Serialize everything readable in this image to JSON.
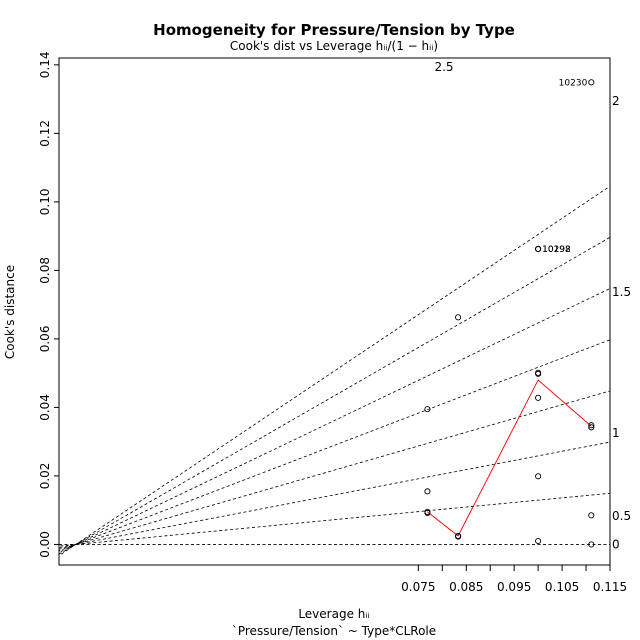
{
  "chart_data": {
    "type": "scatter",
    "title": "Homogeneity for Pressure/Tension by Type",
    "subtitle": "Cook's dist vs Leverage  hᵢᵢ/(1 − hᵢᵢ)",
    "xlabel": "Leverage  hᵢᵢ",
    "xlabel_sub": "`Pressure/Tension` ~ Type*CLRole",
    "ylabel": "Cook's distance",
    "xlim": [
      0.0,
      0.115
    ],
    "ylim": [
      -0.006,
      0.142
    ],
    "x_ticks": [
      0.075,
      0.08,
      0.085,
      0.09,
      0.095,
      0.1,
      0.105,
      0.11,
      0.115
    ],
    "x_tick_labels": [
      "0.075",
      "",
      "0.085",
      "",
      "0.095",
      "",
      "0.105",
      "",
      "0.115"
    ],
    "y_ticks": [
      0.0,
      0.02,
      0.04,
      0.06,
      0.08,
      0.1,
      0.12,
      0.14
    ],
    "y_tick_labels": [
      "0.00",
      "0.02",
      "0.04",
      "0.06",
      "0.08",
      "0.10",
      "0.12",
      "0.14"
    ],
    "grid": false,
    "points": [
      {
        "x": 0.0769,
        "y": 0.0395,
        "label": ""
      },
      {
        "x": 0.0769,
        "y": 0.0155,
        "label": ""
      },
      {
        "x": 0.0769,
        "y": 0.0095,
        "label": ""
      },
      {
        "x": 0.0769,
        "y": 0.0092,
        "label": ""
      },
      {
        "x": 0.0833,
        "y": 0.0663,
        "label": ""
      },
      {
        "x": 0.0833,
        "y": 0.0025,
        "label": ""
      },
      {
        "x": 0.0833,
        "y": 0.0023,
        "label": ""
      },
      {
        "x": 0.1,
        "y": 0.0863,
        "label": "10198"
      },
      {
        "x": 0.1,
        "y": 0.0862,
        "label": "10292"
      },
      {
        "x": 0.1,
        "y": 0.0501,
        "label": ""
      },
      {
        "x": 0.1,
        "y": 0.0498,
        "label": ""
      },
      {
        "x": 0.1,
        "y": 0.0428,
        "label": ""
      },
      {
        "x": 0.1,
        "y": 0.0199,
        "label": ""
      },
      {
        "x": 0.1,
        "y": 0.001,
        "label": ""
      },
      {
        "x": 0.1111,
        "y": 0.1349,
        "label": "10230"
      },
      {
        "x": 0.1111,
        "y": 0.0348,
        "label": ""
      },
      {
        "x": 0.1111,
        "y": 0.0342,
        "label": ""
      },
      {
        "x": 0.1111,
        "y": 0.0085,
        "label": ""
      },
      {
        "x": 0.1111,
        "y": 0.0,
        "label": ""
      }
    ],
    "smooth_line": {
      "color": "#ff0000",
      "x": [
        0.0769,
        0.0833,
        0.1,
        0.1111
      ],
      "y": [
        0.0095,
        0.0025,
        0.048,
        0.0345
      ]
    },
    "contours": [
      {
        "label": "0",
        "k": 0.0
      },
      {
        "label": "0.5",
        "k": 0.5
      },
      {
        "label": "1",
        "k": 1.0
      },
      {
        "label": "1.5",
        "k": 1.5
      },
      {
        "label": "2",
        "k": 2.0
      },
      {
        "label": "2.5",
        "k": 2.5
      },
      {
        "label": "",
        "k": 3.0
      },
      {
        "label": "",
        "k": 3.5
      }
    ],
    "colors": {
      "points": "#000000",
      "contours": "#000000",
      "smooth": "#ff0000"
    }
  }
}
